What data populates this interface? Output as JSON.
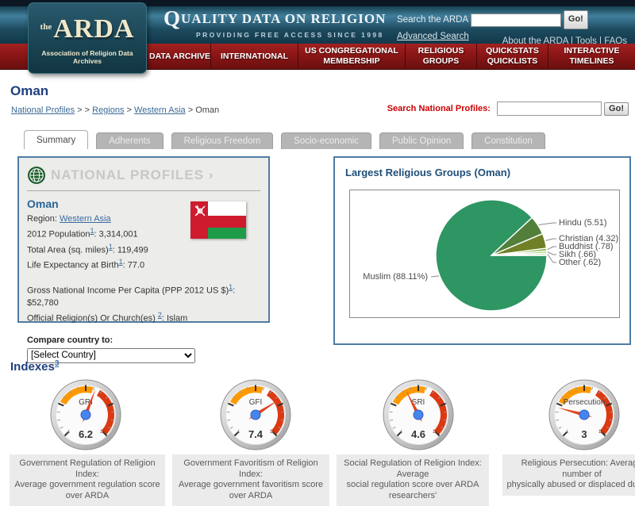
{
  "header": {
    "logo": {
      "prefix": "the",
      "name": "ARDA",
      "tagline": "Association of Religion Data Archives"
    },
    "banner_title": "Quality Data on Religion",
    "banner_tagline": "PROVIDING FREE ACCESS SINCE 1998",
    "search_label": "Search the ARDA",
    "search_button": "Go!",
    "advanced_link": "Advanced Search",
    "top_links": [
      "About the ARDA",
      "Tools",
      "FAQs"
    ],
    "nav": [
      "DATA ARCHIVE",
      "INTERNATIONAL",
      "US CONGREGATIONAL MEMBERSHIP",
      "RELIGIOUS GROUPS",
      "QUICKSTATS QUICKLISTS",
      "INTERACTIVE TIMELINES"
    ]
  },
  "page": {
    "title": "Oman",
    "breadcrumb": {
      "crumbs": [
        {
          "text": "National Profiles",
          "link": true
        },
        {
          "text": "Regions",
          "link": true
        },
        {
          "text": "Western Asia",
          "link": true
        },
        {
          "text": "Oman",
          "link": false
        }
      ],
      "separators": [
        " > > ",
        " > ",
        " > "
      ]
    },
    "profile_search_label": "Search National Profiles:",
    "profile_search_button": "Go!"
  },
  "tabs": [
    {
      "label": "Summary",
      "active": true
    },
    {
      "label": "Adherents",
      "active": false
    },
    {
      "label": "Religious Freedom",
      "active": false
    },
    {
      "label": "Socio-economic",
      "active": false
    },
    {
      "label": "Public Opinion",
      "active": false
    },
    {
      "label": "Constitution",
      "active": false
    }
  ],
  "profile_box": {
    "header": "NATIONAL PROFILES",
    "header_arrow": "›",
    "country": "Oman",
    "rows": [
      {
        "segments": [
          {
            "text": "Region: "
          },
          {
            "text": "Western Asia",
            "link": true
          }
        ]
      },
      {
        "segments": [
          {
            "text": "2012 Population"
          },
          {
            "text": "1",
            "sup": true
          },
          {
            "text": ": 3,314,001"
          }
        ]
      },
      {
        "segments": [
          {
            "text": "Total Area (sq. miles)"
          },
          {
            "text": "1",
            "sup": true
          },
          {
            "text": ": 119,499"
          }
        ]
      },
      {
        "segments": [
          {
            "text": "Life Expectancy at Birth"
          },
          {
            "text": "1",
            "sup": true
          },
          {
            "text": ": 77.0"
          }
        ]
      },
      {
        "gap": true,
        "segments": [
          {
            "text": "Gross National Income Per Capita (PPP 2012 US $)"
          },
          {
            "text": "1",
            "sup": true
          },
          {
            "text": ": $52,780"
          }
        ]
      },
      {
        "segments": [
          {
            "text": "Official Religion(s) Or Church(es) "
          },
          {
            "text": "2",
            "sup": true
          },
          {
            "text": ": Islam"
          }
        ]
      }
    ],
    "compare_label": "Compare country to:",
    "compare_placeholder": "[Select Country]",
    "flag_colors": {
      "red": "#cf1b2e",
      "green": "#1e9b48",
      "white": "#ffffff"
    }
  },
  "chart_box": {
    "title": "Largest Religious Groups (Oman)"
  },
  "indexes": {
    "title": "Indexes",
    "footnote": "3"
  },
  "chart_data": [
    {
      "type": "pie",
      "title": "Largest Religious Groups (Oman)",
      "labels": [
        "Muslim",
        "Hindu",
        "Christian",
        "Buddhist",
        "Sikh",
        "Other"
      ],
      "values": [
        88.11,
        5.51,
        4.32,
        0.78,
        0.66,
        0.62
      ],
      "display_labels": [
        "Muslim (88.11%)",
        "Hindu (5.51)",
        "Christian (4.32)",
        "Buddhist (.78)",
        "Sikh (.66)",
        "Other (.62)"
      ],
      "colors": [
        "#2e9663",
        "#52803a",
        "#6f8026",
        "#86b34a",
        "#a8d178",
        "#cce6b0"
      ],
      "legend_position": "callout-labels",
      "start_angle": "east-clockwise"
    },
    {
      "type": "gauge",
      "min": 1,
      "max": 10,
      "min_label": "1",
      "max_label": "10",
      "yellow_from": 3.4,
      "yellow_to": 6.0,
      "red_from": 6.5,
      "red_to": 10,
      "yellow_color": "#ff9900",
      "red_color": "#dc3912",
      "needle_color": "#e2431e",
      "hub_color": "#4684ee",
      "gauges": [
        {
          "label": "GRI",
          "value": 6.2
        },
        {
          "label": "GFI",
          "value": 7.4
        },
        {
          "label": "SRI",
          "value": 4.6
        },
        {
          "label": "Persecution",
          "value": 3
        }
      ]
    }
  ],
  "captions": [
    [
      "Government Regulation of Religion Index:",
      "Average government regulation score over ARDA"
    ],
    [
      "Government Favoritism of Religion Index:",
      "Average government favoritism score over ARDA"
    ],
    [
      "Social Regulation of Religion Index: Average",
      "social regulation score over ARDA researchers'"
    ],
    [
      "Religious Persecution: Average number of",
      "physically abused or displaced due to t"
    ]
  ]
}
